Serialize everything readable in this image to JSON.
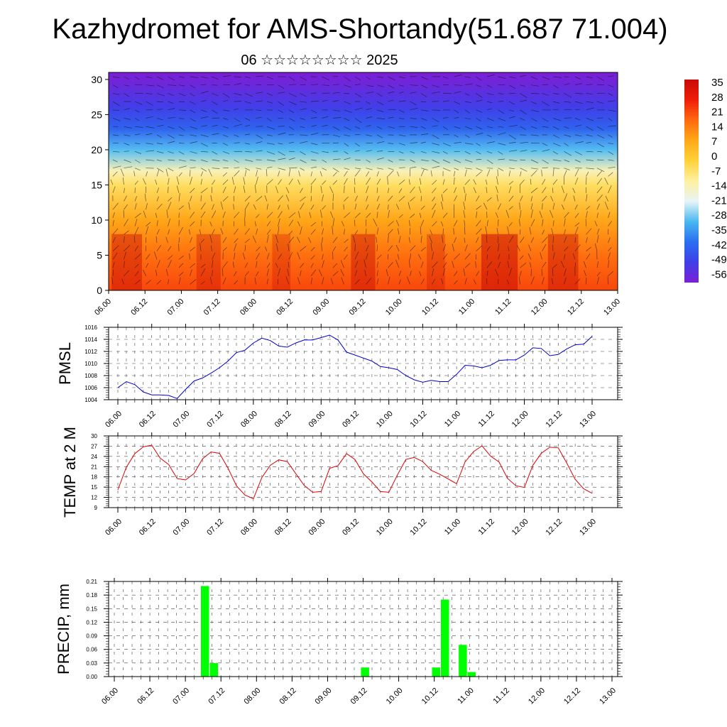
{
  "title": "Kazhydromet for AMS-Shortandy(51.687 71.004)",
  "subtitle": "06 ☆☆☆☆☆☆☆☆ 2025",
  "time_ticks": [
    "06.00",
    "06.12",
    "07.00",
    "07.12",
    "08.00",
    "08.12",
    "09.00",
    "09.12",
    "10.00",
    "10.12",
    "11.00",
    "11.12",
    "12.00",
    "12.12",
    "13.00"
  ],
  "chart_data": [
    {
      "type": "heatmap",
      "name": "vertical-cross-section",
      "ylim": [
        0,
        31
      ],
      "yticks": [
        "0",
        "5",
        "10",
        "15",
        "20",
        "25",
        "30"
      ],
      "colorbar_labels": [
        "35",
        "28",
        "21",
        "14",
        "7",
        "0",
        "-7",
        "-14",
        "-21",
        "-28",
        "-35",
        "-42",
        "-49",
        "-56"
      ],
      "colorbar_range": [
        35,
        -56
      ],
      "colors": [
        "#7a1fd6",
        "#3f3fe8",
        "#2a6ef0",
        "#49b8f0",
        "#e8f4f8",
        "#fff0a0",
        "#ffd23a",
        "#ffa818",
        "#ff6a0e",
        "#f01e0a",
        "#c80a06"
      ],
      "level_profile": [
        {
          "height": 0,
          "value": 21
        },
        {
          "height": 5,
          "value": 16
        },
        {
          "height": 10,
          "value": 8
        },
        {
          "height": 15,
          "value": -5
        },
        {
          "height": 17,
          "value": -13
        },
        {
          "height": 20,
          "value": -28
        },
        {
          "height": 23,
          "value": -40
        },
        {
          "height": 26,
          "value": -47
        },
        {
          "height": 30,
          "value": -55
        }
      ]
    },
    {
      "type": "line",
      "ylabel": "PMSL",
      "ylim": [
        1004,
        1016
      ],
      "yticks": [
        "1004",
        "1006",
        "1008",
        "1010",
        "1012",
        "1014",
        "1016"
      ],
      "color": "#0000cc",
      "x": [
        0,
        3,
        6,
        9,
        12,
        15,
        18,
        21,
        24,
        27,
        30,
        33,
        36,
        39,
        42,
        45,
        48,
        51,
        54,
        57,
        60,
        63,
        66,
        69,
        72,
        75,
        78,
        81,
        84,
        87,
        90,
        93,
        96,
        99,
        102,
        105,
        108,
        111,
        114,
        117,
        120,
        123,
        126,
        129,
        132,
        135,
        138,
        141,
        144,
        147,
        150,
        153,
        156,
        159,
        162,
        165,
        168
      ],
      "values": [
        1006.0,
        1007.0,
        1006.5,
        1005.3,
        1004.8,
        1004.8,
        1004.7,
        1004.2,
        1005.7,
        1007.1,
        1007.6,
        1008.4,
        1009.3,
        1010.4,
        1011.8,
        1012.2,
        1013.4,
        1014.2,
        1013.8,
        1012.9,
        1012.7,
        1013.4,
        1013.9,
        1013.9,
        1014.3,
        1014.7,
        1013.9,
        1011.9,
        1011.4,
        1010.9,
        1010.4,
        1009.5,
        1009.3,
        1009.0,
        1008.0,
        1007.3,
        1006.9,
        1007.2,
        1007.0,
        1007.0,
        1008.2,
        1009.7,
        1009.6,
        1009.3,
        1009.7,
        1010.5,
        1010.6,
        1010.6,
        1011.4,
        1012.6,
        1012.5,
        1011.3,
        1011.5,
        1012.4,
        1013.1,
        1013.2,
        1014.5
      ]
    },
    {
      "type": "line",
      "ylabel": "TEMP at 2 M",
      "ylim": [
        9,
        30
      ],
      "yticks": [
        "9",
        "12",
        "15",
        "18",
        "21",
        "24",
        "27",
        "30"
      ],
      "color": "#dd0000",
      "x": [
        0,
        3,
        6,
        9,
        12,
        15,
        18,
        21,
        24,
        27,
        30,
        33,
        36,
        39,
        42,
        45,
        48,
        51,
        54,
        57,
        60,
        63,
        66,
        69,
        72,
        75,
        78,
        81,
        84,
        87,
        90,
        93,
        96,
        99,
        102,
        105,
        108,
        111,
        114,
        117,
        120,
        123,
        126,
        129,
        132,
        135,
        138,
        141,
        144,
        147,
        150,
        153,
        156,
        159,
        162,
        165,
        168
      ],
      "values": [
        14.2,
        20.8,
        24.8,
        26.8,
        27.3,
        23.5,
        21.6,
        17.5,
        17.1,
        19.0,
        23.3,
        25.3,
        24.9,
        20.6,
        15.4,
        12.7,
        11.6,
        17.8,
        21.4,
        23.0,
        22.5,
        19.0,
        15.5,
        13.5,
        13.7,
        20.5,
        21.3,
        24.8,
        23.1,
        18.9,
        16.5,
        13.7,
        13.5,
        18.5,
        23.1,
        23.7,
        22.5,
        19.9,
        18.8,
        17.4,
        16.0,
        22.4,
        25.4,
        27.1,
        24.1,
        22.4,
        17.6,
        15.4,
        14.9,
        21.4,
        24.9,
        26.7,
        26.5,
        22.1,
        17.3,
        14.5,
        13.2
      ]
    },
    {
      "type": "bar",
      "ylabel": "PRECIP, mm",
      "ylim": [
        0,
        0.21
      ],
      "yticks": [
        "0.00",
        "0.03",
        "0.06",
        "0.09",
        "0.12",
        "0.15",
        "0.18",
        "0.21"
      ],
      "color": "#00ff00",
      "bars": [
        {
          "x": 30,
          "value": 0.2
        },
        {
          "x": 33,
          "value": 0.03
        },
        {
          "x": 84,
          "value": 0.02
        },
        {
          "x": 108,
          "value": 0.02
        },
        {
          "x": 111,
          "value": 0.17
        },
        {
          "x": 117,
          "value": 0.07
        },
        {
          "x": 120,
          "value": 0.01
        }
      ]
    }
  ]
}
